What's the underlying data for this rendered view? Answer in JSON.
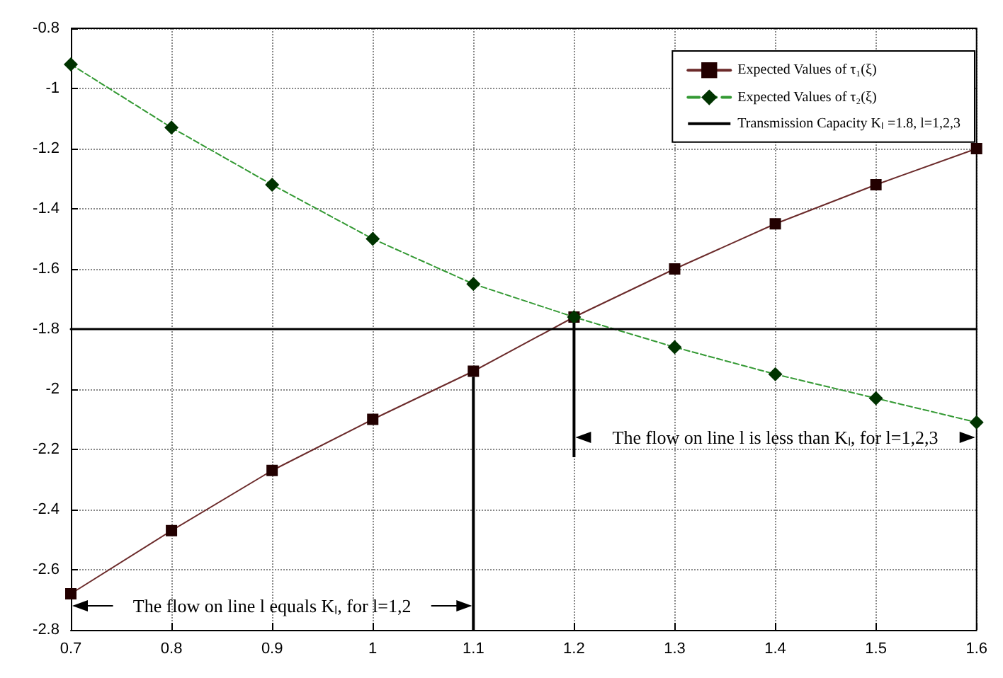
{
  "chart_data": {
    "type": "line",
    "x": [
      0.7,
      0.8,
      0.9,
      1.0,
      1.1,
      1.2,
      1.3,
      1.4,
      1.5,
      1.6
    ],
    "series": [
      {
        "name": "Expected Values of τ₁(ξ)",
        "color": "#6b2a2a",
        "marker": "square",
        "line_style": "solid",
        "values": [
          -2.68,
          -2.47,
          -2.27,
          -2.1,
          -1.94,
          -1.76,
          -1.6,
          -1.45,
          -1.32,
          -1.2
        ]
      },
      {
        "name": "Expected Values of τ₂(ξ)",
        "color": "#339933",
        "marker": "diamond",
        "line_style": "dashed",
        "values": [
          -0.92,
          -1.13,
          -1.32,
          -1.5,
          -1.65,
          -1.76,
          -1.86,
          -1.95,
          -2.03,
          -2.11
        ]
      },
      {
        "name": "Transmission Capacity Kₗ =1.8, l=1,2,3",
        "color": "#000000",
        "marker": "none",
        "line_style": "solid",
        "x": [
          0.7,
          1.6
        ],
        "values": [
          -1.8,
          -1.8
        ]
      }
    ],
    "xlim": [
      0.7,
      1.6
    ],
    "xticks": [
      0.7,
      0.8,
      0.9,
      1,
      1.1,
      1.2,
      1.3,
      1.4,
      1.5,
      1.6
    ],
    "ylim": [
      -2.8,
      -0.8
    ],
    "yticks": [
      -2.8,
      -2.6,
      -2.4,
      -2.2,
      -2,
      -1.8,
      -1.6,
      -1.4,
      -1.2,
      -1,
      -0.8
    ],
    "grid": true,
    "legend": "top right",
    "annotations": [
      "The flow on line l equals Kₗ, for l=1,2",
      "The flow on line l is less than Kₗ, for l=1,2,3"
    ]
  }
}
